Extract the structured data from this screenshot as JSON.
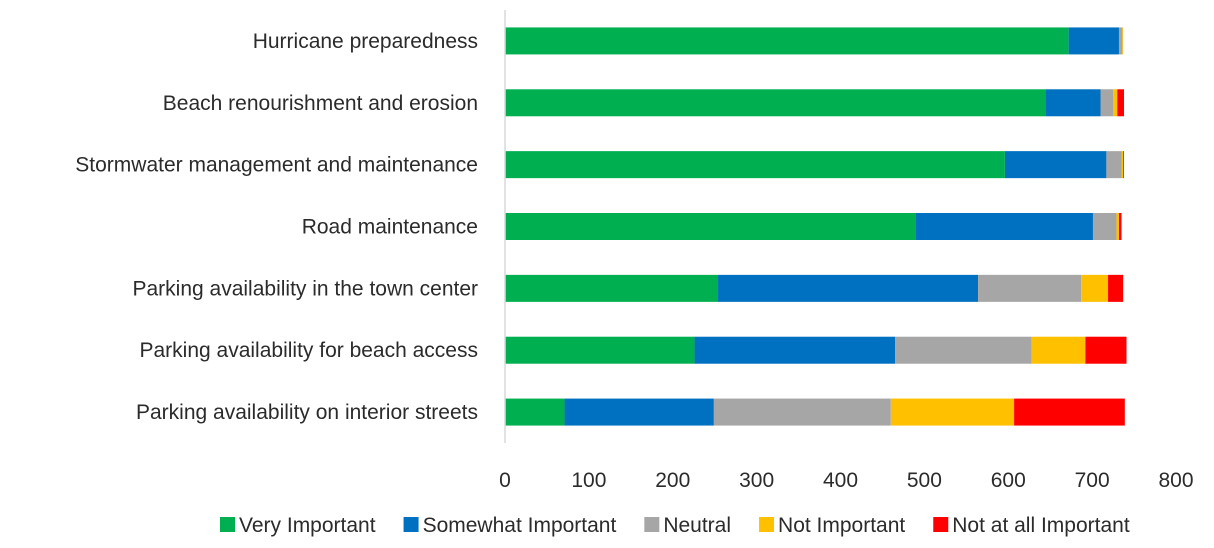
{
  "chart_data": {
    "type": "bar",
    "orientation": "horizontal",
    "stacked": true,
    "categories": [
      "Hurricane preparedness",
      "Beach renourishment and erosion",
      "Stormwater management and maintenance",
      "Road maintenance",
      "Parking availability in the town center",
      "Parking availability for beach access",
      "Parking availability on interior streets"
    ],
    "series": [
      {
        "name": "Very Important",
        "color": "#00b050",
        "values": [
          672,
          645,
          596,
          490,
          254,
          226,
          71
        ]
      },
      {
        "name": "Somewhat Important",
        "color": "#0070c0",
        "values": [
          60,
          65,
          121,
          211,
          310,
          239,
          178
        ]
      },
      {
        "name": "Neutral",
        "color": "#a6a6a6",
        "values": [
          4,
          15,
          18,
          28,
          123,
          163,
          211
        ]
      },
      {
        "name": "Not Important",
        "color": "#ffc000",
        "values": [
          1,
          5,
          2,
          3,
          32,
          64,
          147
        ]
      },
      {
        "name": "Not at all Important",
        "color": "#ff0000",
        "values": [
          0,
          8,
          1,
          3,
          18,
          49,
          132
        ]
      }
    ],
    "xlim": [
      0,
      800
    ],
    "xticks": [
      0,
      100,
      200,
      300,
      400,
      500,
      600,
      700,
      800
    ],
    "grid": false,
    "legend": "bottom",
    "title": "",
    "xlabel": "",
    "ylabel": ""
  }
}
